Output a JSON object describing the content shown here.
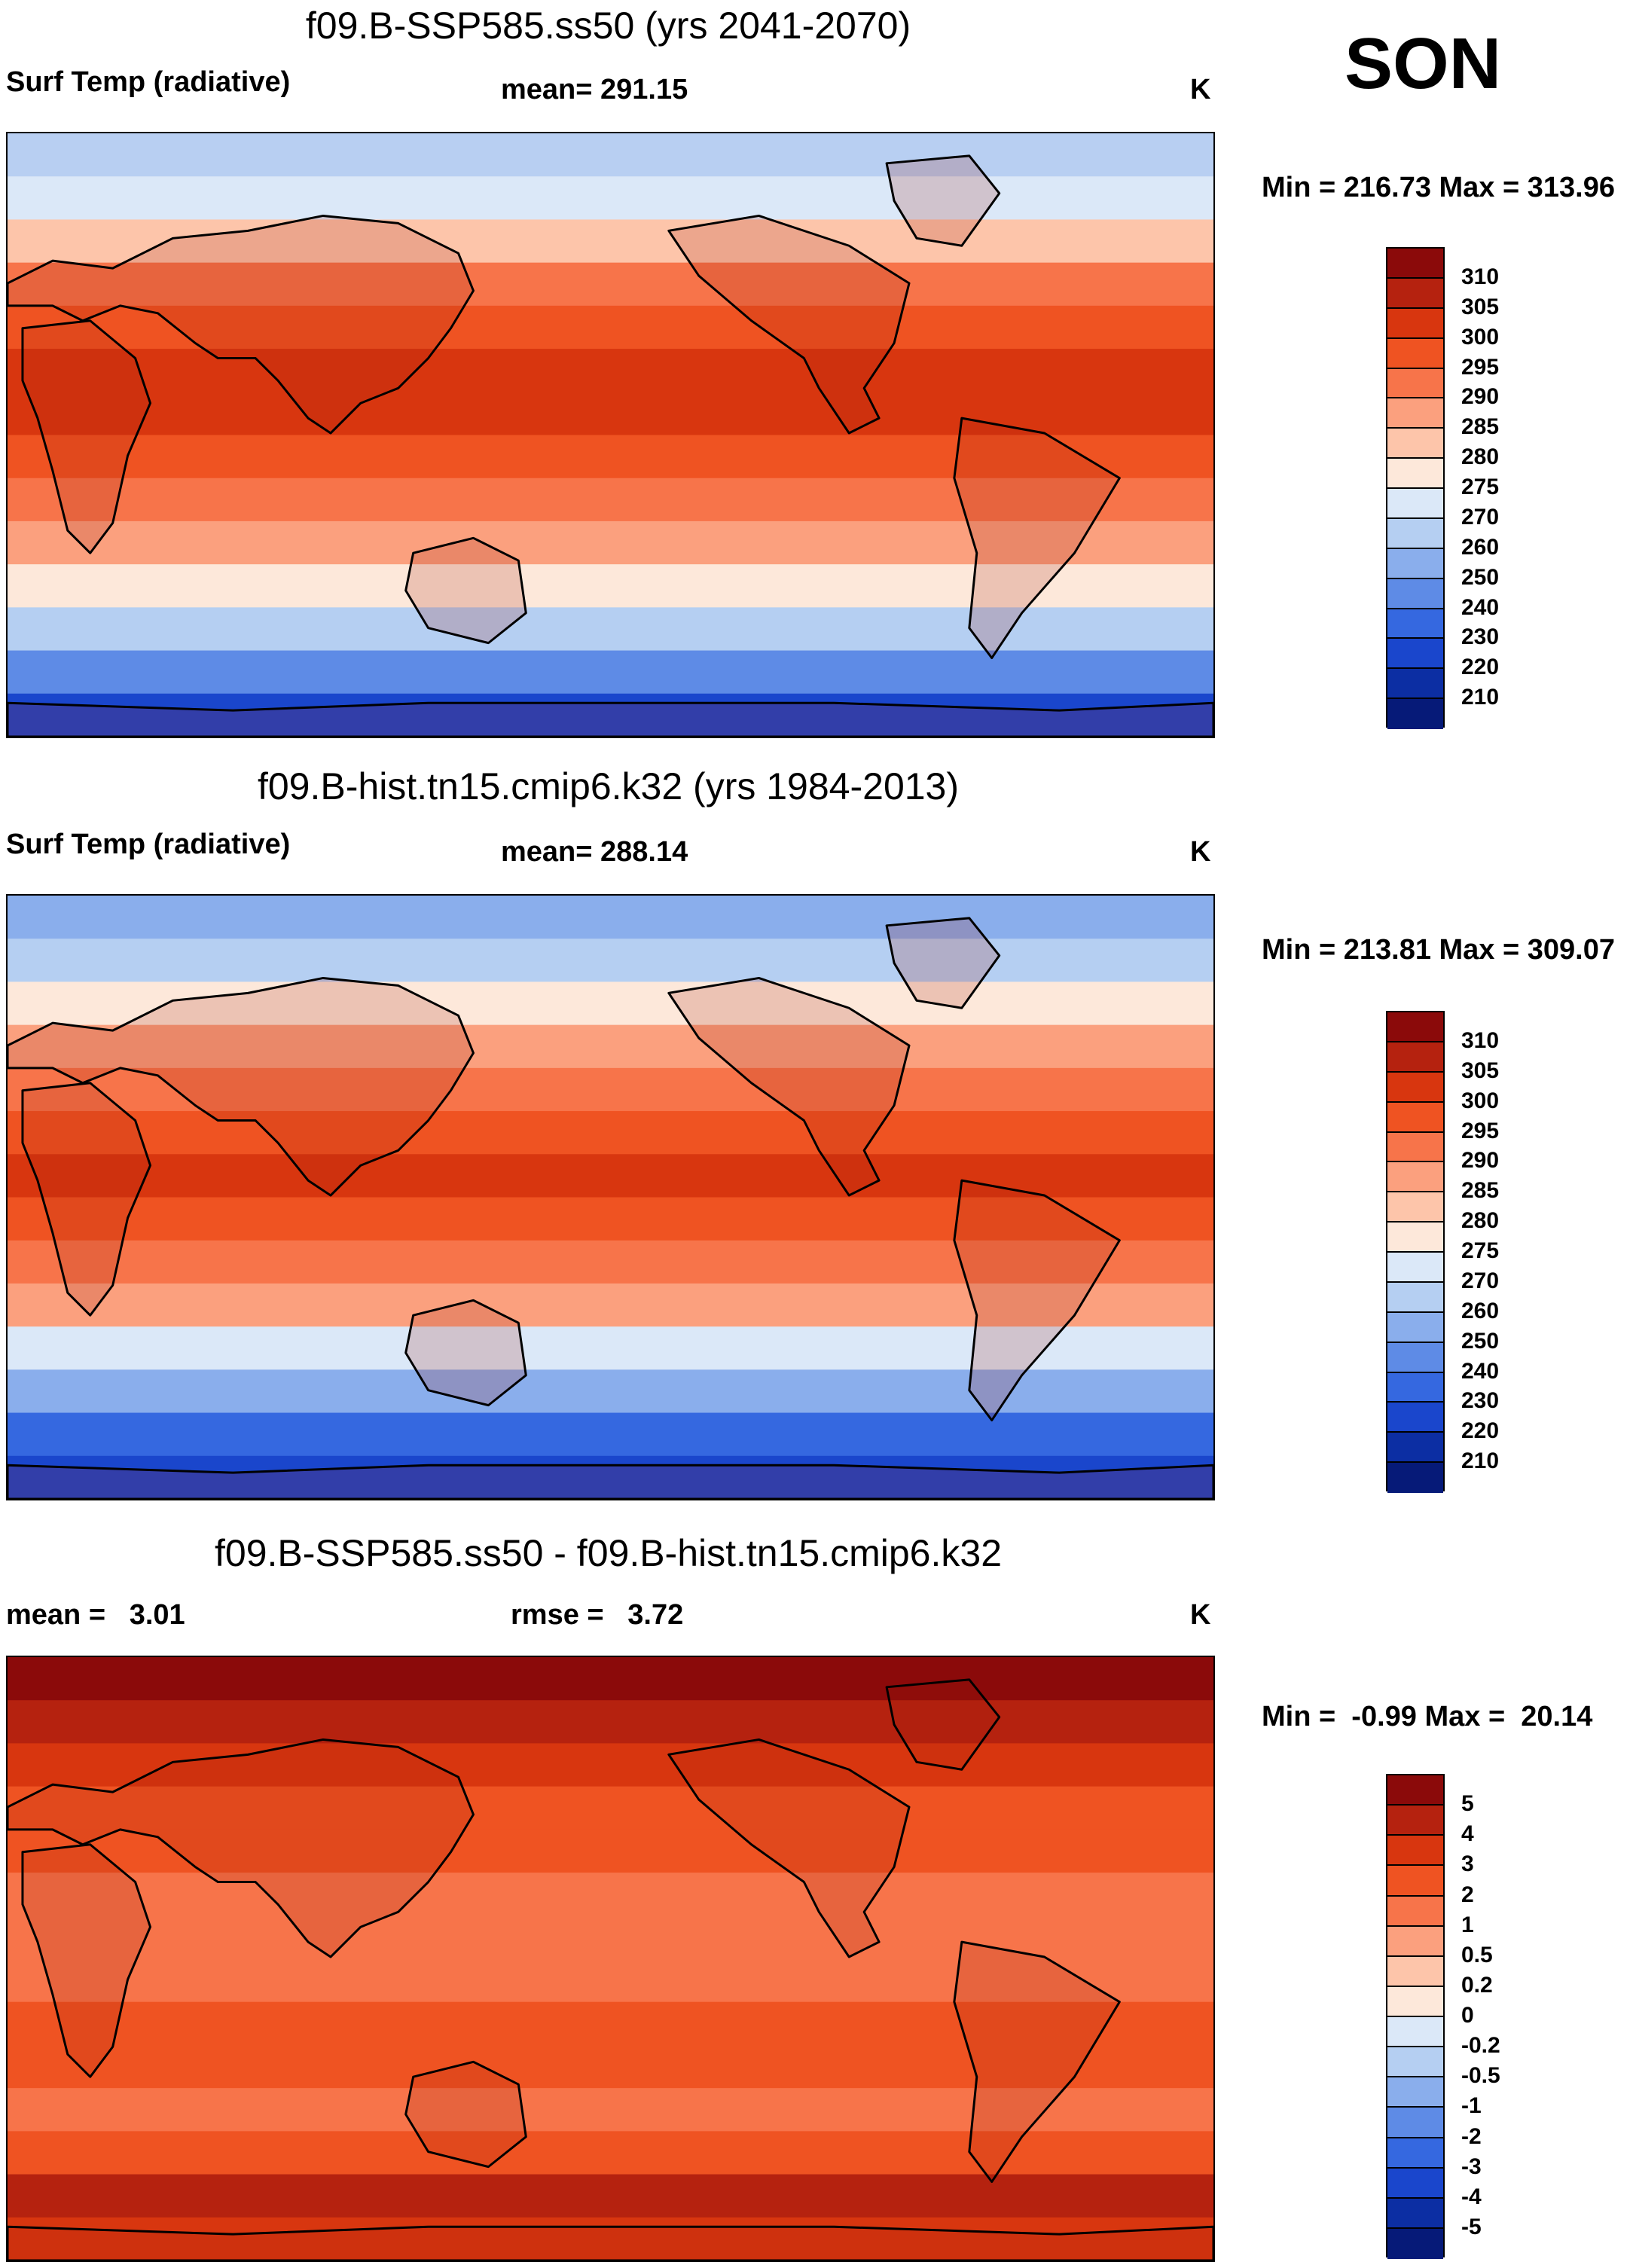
{
  "season": "SON",
  "panels": [
    {
      "title": "f09.B-SSP585.ss50 (yrs 2041-2070)",
      "left_label": "Surf Temp (radiative)",
      "center_label": "mean= 291.15",
      "unit": "K",
      "minmax": "Min = 216.73 Max = 313.96",
      "colorbar_labels": [
        "310",
        "305",
        "300",
        "295",
        "290",
        "285",
        "280",
        "275",
        "270",
        "260",
        "250",
        "240",
        "230",
        "220",
        "210"
      ],
      "colorbar_colors": [
        "#8b0a0a",
        "#b5220f",
        "#d8360f",
        "#ef5322",
        "#f7744a",
        "#fba07e",
        "#fdc5aa",
        "#fde8da",
        "#dbe8f8",
        "#b5cff2",
        "#8aaeec",
        "#5e8be6",
        "#3568e0",
        "#1a46cc",
        "#0c2ea3",
        "#061a78"
      ],
      "bands": [
        "#b8cff2",
        "#dbe8f8",
        "#fdc5aa",
        "#f7744a",
        "#ef5322",
        "#d8360f",
        "#d8360f",
        "#ef5322",
        "#f7744a",
        "#fba07e",
        "#fde8da",
        "#b5cff2",
        "#5e8be6",
        "#1a46cc"
      ]
    },
    {
      "title": "f09.B-hist.tn15.cmip6.k32 (yrs 1984-2013)",
      "left_label": "Surf Temp (radiative)",
      "center_label": "mean= 288.14",
      "unit": "K",
      "minmax": "Min = 213.81 Max = 309.07",
      "colorbar_labels": [
        "310",
        "305",
        "300",
        "295",
        "290",
        "285",
        "280",
        "275",
        "270",
        "260",
        "250",
        "240",
        "230",
        "220",
        "210"
      ],
      "colorbar_colors": [
        "#8b0a0a",
        "#b5220f",
        "#d8360f",
        "#ef5322",
        "#f7744a",
        "#fba07e",
        "#fdc5aa",
        "#fde8da",
        "#dbe8f8",
        "#b5cff2",
        "#8aaeec",
        "#5e8be6",
        "#3568e0",
        "#1a46cc",
        "#0c2ea3",
        "#061a78"
      ],
      "bands": [
        "#8aaeec",
        "#b5cff2",
        "#fde8da",
        "#fba07e",
        "#f7744a",
        "#ef5322",
        "#d8360f",
        "#ef5322",
        "#f7744a",
        "#fba07e",
        "#dbe8f8",
        "#8aaeec",
        "#3568e0",
        "#1a46cc"
      ]
    },
    {
      "title": "f09.B-SSP585.ss50 - f09.B-hist.tn15.cmip6.k32",
      "left_label": "mean =   3.01",
      "center_label": "rmse =   3.72",
      "unit": "K",
      "minmax": "Min =  -0.99 Max =  20.14",
      "colorbar_labels": [
        "5",
        "4",
        "3",
        "2",
        "1",
        "0.5",
        "0.2",
        "0",
        "-0.2",
        "-0.5",
        "-1",
        "-2",
        "-3",
        "-4",
        "-5"
      ],
      "colorbar_colors": [
        "#8b0a0a",
        "#b5220f",
        "#d8360f",
        "#ef5322",
        "#f7744a",
        "#fba07e",
        "#fdc5aa",
        "#fde8da",
        "#dbe8f8",
        "#b5cff2",
        "#8aaeec",
        "#5e8be6",
        "#3568e0",
        "#1a46cc",
        "#0c2ea3",
        "#061a78"
      ],
      "bands": [
        "#8b0a0a",
        "#b5220f",
        "#d8360f",
        "#ef5322",
        "#ef5322",
        "#f7744a",
        "#f7744a",
        "#f7744a",
        "#ef5322",
        "#ef5322",
        "#f7744a",
        "#ef5322",
        "#b5220f",
        "#d8360f"
      ]
    }
  ]
}
